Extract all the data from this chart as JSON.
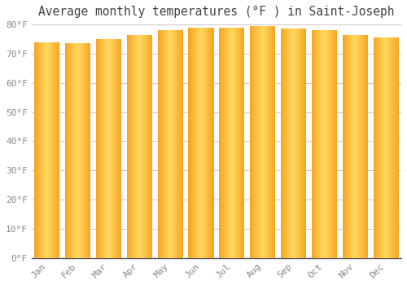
{
  "title": "Average monthly temperatures (°F ) in Saint-Joseph",
  "months": [
    "Jan",
    "Feb",
    "Mar",
    "Apr",
    "May",
    "Jun",
    "Jul",
    "Aug",
    "Sep",
    "Oct",
    "Nov",
    "Dec"
  ],
  "values": [
    74,
    73.5,
    75,
    76.5,
    78,
    79,
    79,
    79.5,
    78.5,
    78,
    76.5,
    75.5
  ],
  "bar_color_edge": "#F5A623",
  "bar_color_center": "#FFD97A",
  "background_color": "#FFFFFF",
  "plot_bg_color": "#FFFFFF",
  "grid_color": "#CCCCCC",
  "tick_color": "#888888",
  "title_color": "#444444",
  "ylim": [
    0,
    80
  ],
  "yticks": [
    0,
    10,
    20,
    30,
    40,
    50,
    60,
    70,
    80
  ],
  "ytick_labels": [
    "0°F",
    "10°F",
    "20°F",
    "30°F",
    "40°F",
    "50°F",
    "60°F",
    "70°F",
    "80°F"
  ],
  "title_fontsize": 10.5,
  "tick_fontsize": 8,
  "bar_width": 0.82,
  "n_gradient_steps": 30
}
